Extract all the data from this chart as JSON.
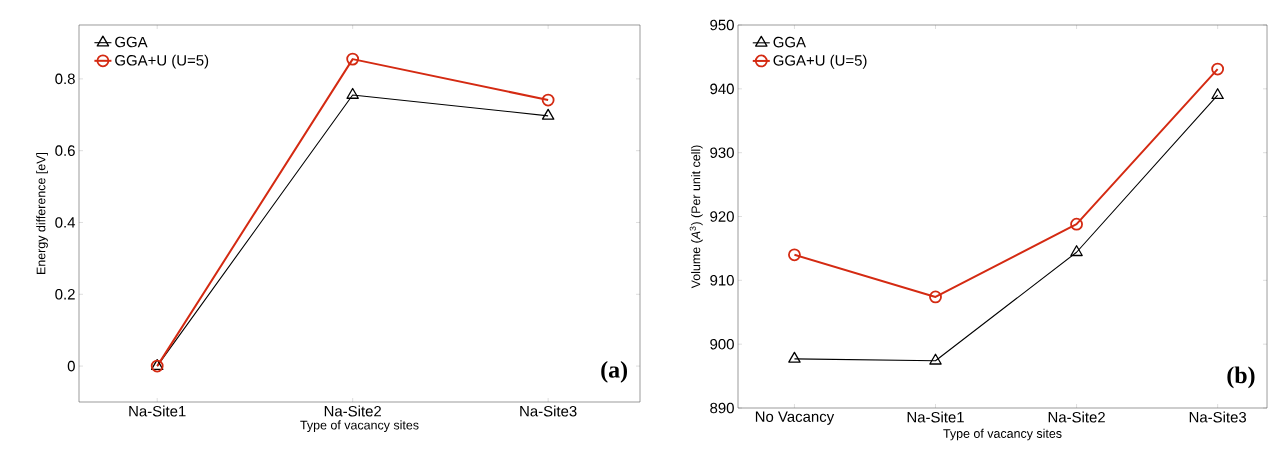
{
  "chart_data": [
    {
      "type": "line",
      "xlabel": "Type of vacancy sites",
      "ylabel": "Energy difference [eV]",
      "categories": [
        "Na-Site1",
        "Na-Site2",
        "Na-Site3"
      ],
      "series": [
        {
          "name": "GGA",
          "color": "#000000",
          "marker": "triangle",
          "values": [
            0,
            0.755,
            0.697
          ]
        },
        {
          "name": "GGA+U (U=5)",
          "color": "#d42a12",
          "marker": "circle",
          "values": [
            0,
            0.855,
            0.741
          ]
        }
      ],
      "ylim": [
        -0.1,
        0.95
      ],
      "yticks": [
        0,
        0.2,
        0.4,
        0.6,
        0.8
      ],
      "grid": false,
      "legend": "top left",
      "annotations": [
        "(a)"
      ]
    },
    {
      "type": "line",
      "xlabel": "Type of vacancy sites",
      "ylabel": "Volume (*A*$^{3}$) (Per unit cell)",
      "categories": [
        "No Vacancy",
        "Na-Site1",
        "Na-Site2",
        "Na-Site3"
      ],
      "series": [
        {
          "name": "GGA",
          "color": "#000000",
          "marker": "triangle",
          "values": [
            897.7,
            897.4,
            914.4,
            939.0
          ]
        },
        {
          "name": "GGA+U (U=5)",
          "color": "#d42a12",
          "marker": "circle",
          "values": [
            914.0,
            907.4,
            918.8,
            943.1
          ]
        }
      ],
      "ylim": [
        890,
        950
      ],
      "yticks": [
        890,
        900,
        910,
        920,
        930,
        940,
        950
      ],
      "grid": false,
      "legend": "top left",
      "annotations": [
        "(b)"
      ]
    }
  ]
}
